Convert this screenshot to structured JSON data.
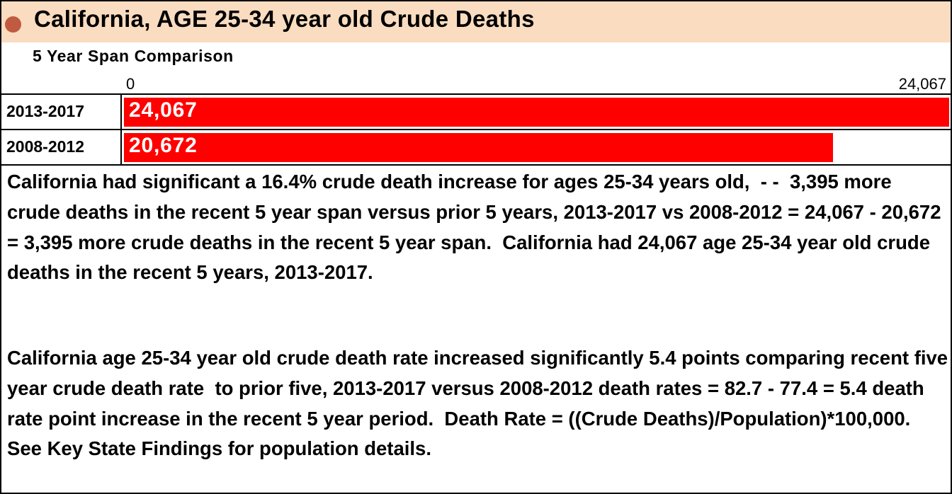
{
  "title": "California, AGE 25-34 year old Crude Deaths",
  "subtitle": "5 Year Span Comparison",
  "colors": {
    "header_bg": "#fadcc0",
    "bar": "#ff0000",
    "dot": "#c05a40"
  },
  "chart_data": {
    "type": "bar",
    "orientation": "horizontal",
    "categories": [
      "2013-2017",
      "2008-2012"
    ],
    "values": [
      24067,
      20672
    ],
    "value_labels": [
      "24,067",
      "20,672"
    ],
    "xlim": [
      0,
      24067
    ],
    "tick_labels": [
      "0",
      "24,067"
    ],
    "title": "California, AGE 25-34 year old Crude Deaths",
    "subtitle": "5 Year Span Comparison"
  },
  "paragraphs": [
    "California had significant a 16.4% crude death increase for ages 25-34 years old,  - -  3,395 more crude deaths in the recent 5 year span versus prior 5 years, 2013-2017 vs 2008-2012 = 24,067 - 20,672 = 3,395 more crude deaths in the recent 5 year span.  California had 24,067 age 25-34 year old crude deaths in the recent 5 years, 2013-2017.",
    "California age 25-34 year old crude death rate increased significantly 5.4 points comparing recent five year crude death rate  to prior five, 2013-2017 versus 2008-2012 death rates = 82.7 - 77.4 = 5.4 death rate point increase in the recent 5 year period.  Death Rate = ((Crude Deaths)/Population)*100,000. See Key State Findings for population details."
  ]
}
